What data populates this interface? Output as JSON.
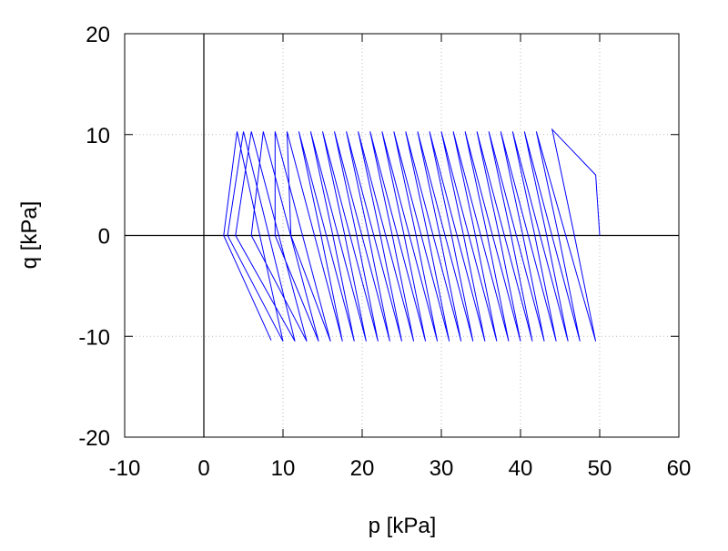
{
  "chart_data": {
    "type": "line",
    "xlabel": "p [kPa]",
    "ylabel": "q [kPa]",
    "x": [
      50,
      49.5,
      44,
      46.8,
      49.5,
      42,
      44.8,
      47.5,
      40.5,
      43.3,
      46,
      39,
      41.8,
      44.5,
      37.5,
      40.3,
      43,
      36,
      38.8,
      41.5,
      34.5,
      37.3,
      40,
      33,
      35.8,
      38.5,
      31.5,
      34.3,
      37,
      30,
      32.8,
      35.5,
      28.5,
      31.3,
      34,
      27,
      29.8,
      32.5,
      25.5,
      28.3,
      31,
      24,
      26.8,
      29.5,
      22.5,
      25.3,
      28,
      21,
      23.8,
      26.5,
      19.5,
      22.3,
      25,
      18,
      20.8,
      23.5,
      16.5,
      19.3,
      22,
      15,
      17.8,
      20.5,
      13.5,
      16.3,
      19,
      12,
      14.8,
      17.5,
      10.5,
      11,
      16,
      9,
      9,
      14.5,
      7.5,
      6,
      13,
      6,
      4,
      11.5,
      5,
      3,
      10,
      4.2,
      2.5,
      8.5
    ],
    "series": [
      {
        "color": "#0000ff",
        "values": [
          0,
          6,
          10.5,
          0,
          -10.5,
          10.3,
          0,
          -10.5,
          10.3,
          0,
          -10.5,
          10.3,
          0,
          -10.5,
          10.3,
          0,
          -10.5,
          10.3,
          0,
          -10.5,
          10.3,
          0,
          -10.5,
          10.3,
          0,
          -10.5,
          10.3,
          0,
          -10.5,
          10.3,
          0,
          -10.5,
          10.3,
          0,
          -10.5,
          10.3,
          0,
          -10.5,
          10.3,
          0,
          -10.5,
          10.3,
          0,
          -10.5,
          10.3,
          0,
          -10.5,
          10.3,
          0,
          -10.5,
          10.3,
          0,
          -10.5,
          10.3,
          0,
          -10.5,
          10.3,
          0,
          -10.5,
          10.3,
          0,
          -10.5,
          10.3,
          0,
          -10.5,
          10.3,
          0,
          -10.5,
          10.3,
          0,
          -10.5,
          10.3,
          0,
          -10.5,
          10.3,
          0,
          -10.5,
          10.3,
          0,
          -10.5,
          10.3,
          0,
          -10.5,
          10.3,
          0,
          -10.4
        ]
      }
    ],
    "xlim": [
      -10,
      60
    ],
    "xticks": [
      -10,
      0,
      10,
      20,
      30,
      40,
      50,
      60
    ],
    "ylim": [
      -20,
      20
    ],
    "yticks": [
      -20,
      -10,
      0,
      10,
      20
    ],
    "grid": true,
    "zeroaxis": true
  }
}
